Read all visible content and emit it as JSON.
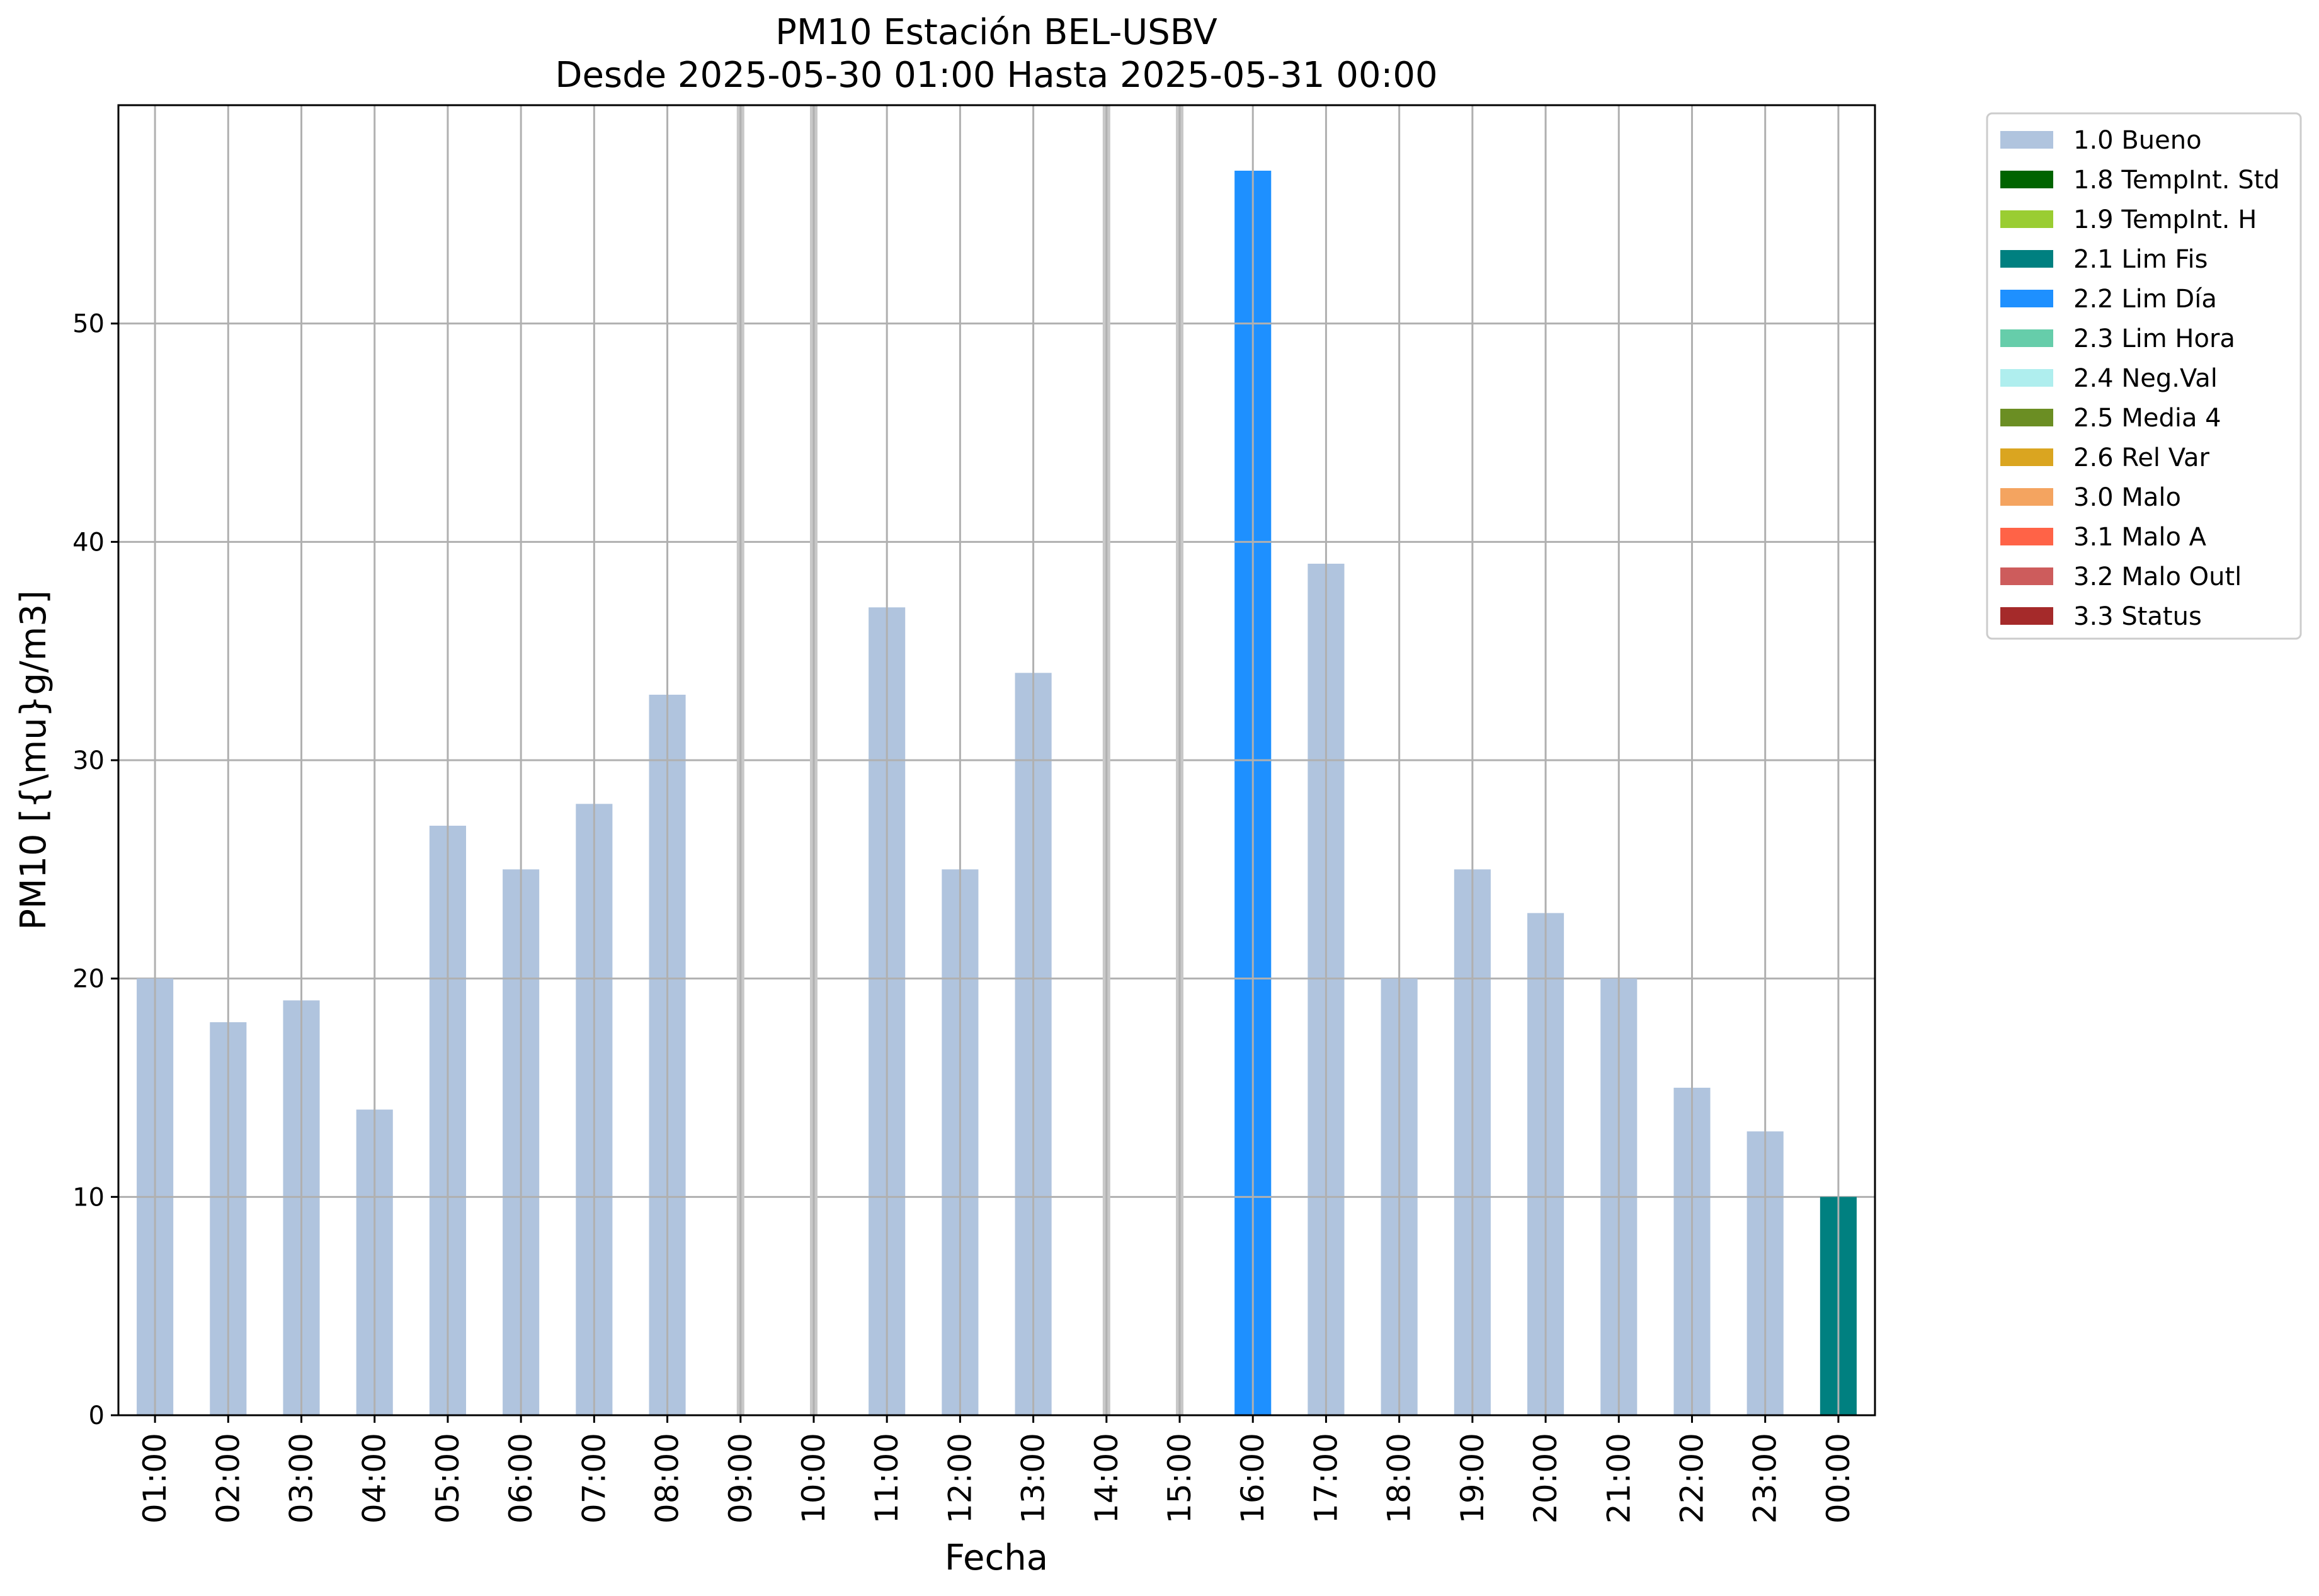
{
  "chart_data": {
    "type": "bar",
    "title": "PM10 Estación BEL-USBV",
    "subtitle": "Desde 2025-05-30 01:00 Hasta 2025-05-31 00:00",
    "xlabel": "Fecha",
    "ylabel": "PM10 [{\\mu}g/m3]",
    "ylim": [
      0,
      60
    ],
    "yticks": [
      0,
      10,
      20,
      30,
      40,
      50
    ],
    "grid": true,
    "legend_position": "outside-right-top",
    "categories": [
      "01:00",
      "02:00",
      "03:00",
      "04:00",
      "05:00",
      "06:00",
      "07:00",
      "08:00",
      "09:00",
      "10:00",
      "11:00",
      "12:00",
      "13:00",
      "14:00",
      "15:00",
      "16:00",
      "17:00",
      "18:00",
      "19:00",
      "20:00",
      "21:00",
      "22:00",
      "23:00",
      "00:00"
    ],
    "values": [
      20,
      18,
      19,
      14,
      27,
      25,
      28,
      33,
      null,
      null,
      37,
      25,
      34,
      null,
      null,
      57,
      39,
      20,
      25,
      23,
      20,
      15,
      13,
      10
    ],
    "flags": [
      "1.0",
      "1.0",
      "1.0",
      "1.0",
      "1.0",
      "1.0",
      "1.0",
      "1.0",
      null,
      null,
      "1.0",
      "1.0",
      "1.0",
      null,
      null,
      "2.2",
      "1.0",
      "1.0",
      "1.0",
      "1.0",
      "1.0",
      "1.0",
      "1.0",
      "2.1"
    ],
    "legend": [
      {
        "code": "1.0",
        "label": "1.0 Bueno",
        "color": "#b0c4de"
      },
      {
        "code": "1.8",
        "label": "1.8 TempInt. Std",
        "color": "#006400"
      },
      {
        "code": "1.9",
        "label": "1.9 TempInt. H",
        "color": "#9acd32"
      },
      {
        "code": "2.1",
        "label": "2.1 Lim Fis",
        "color": "#008080"
      },
      {
        "code": "2.2",
        "label": "2.2 Lim Día",
        "color": "#1e90ff"
      },
      {
        "code": "2.3",
        "label": "2.3 Lim Hora",
        "color": "#66cdaa"
      },
      {
        "code": "2.4",
        "label": "2.4 Neg.Val",
        "color": "#afeeee"
      },
      {
        "code": "2.5",
        "label": "2.5 Media 4",
        "color": "#6b8e23"
      },
      {
        "code": "2.6",
        "label": "2.6 Rel Var",
        "color": "#daa520"
      },
      {
        "code": "3.0",
        "label": "3.0 Malo",
        "color": "#f4a460"
      },
      {
        "code": "3.1",
        "label": "3.1 Malo A",
        "color": "#ff6347"
      },
      {
        "code": "3.2",
        "label": "3.2 Malo Outl",
        "color": "#cd5c5c"
      },
      {
        "code": "3.3",
        "label": "3.3 Status",
        "color": "#a52a2a"
      }
    ]
  }
}
